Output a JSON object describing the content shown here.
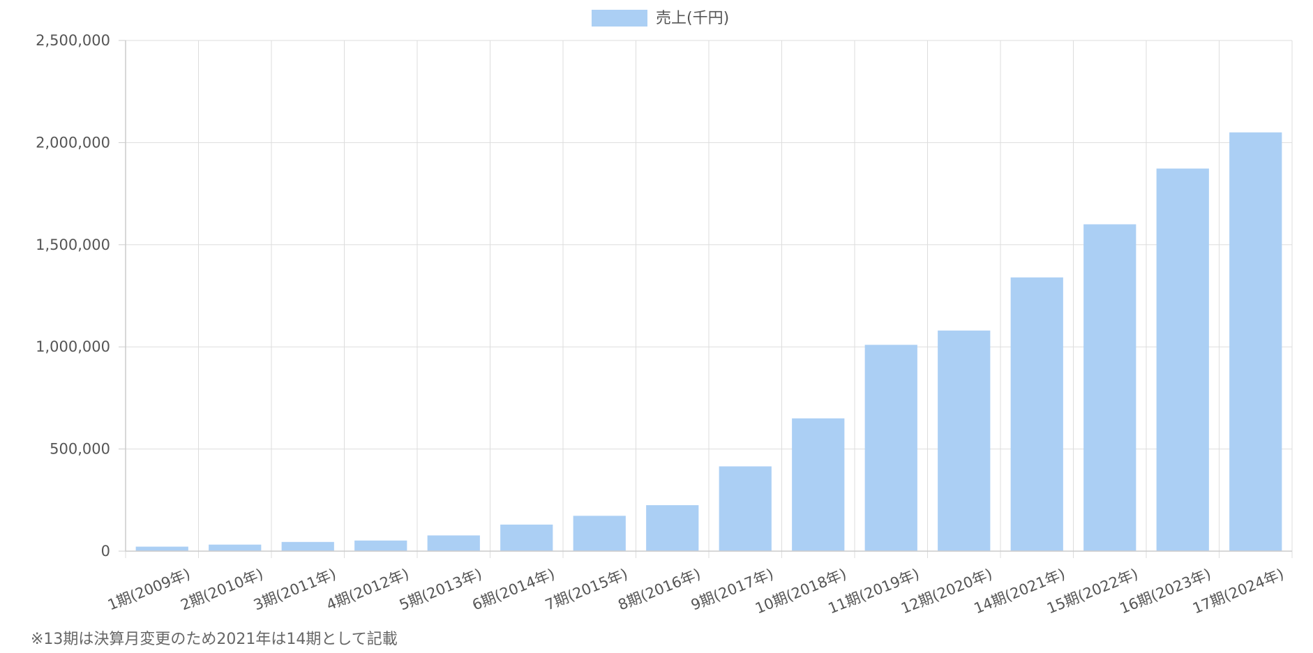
{
  "chart_data": {
    "type": "bar",
    "title": "",
    "xlabel": "",
    "ylabel": "",
    "categories": [
      "1期(2009年)",
      "2期(2010年)",
      "3期(2011年)",
      "4期(2012年)",
      "5期(2013年)",
      "6期(2014年)",
      "7期(2015年)",
      "8期(2016年)",
      "9期(2017年)",
      "10期(2018年)",
      "11期(2019年)",
      "12期(2020年)",
      "14期(2021年)",
      "15期(2022年)",
      "16期(2023年)",
      "17期(2024年)"
    ],
    "series": [
      {
        "name": "売上(千円)",
        "color": "#abcff4",
        "values": [
          22000,
          32000,
          45000,
          52000,
          77000,
          130000,
          173000,
          225000,
          415000,
          650000,
          1010000,
          1080000,
          1340000,
          1600000,
          1873000,
          2050000
        ]
      }
    ],
    "ylim": [
      0,
      2500000
    ],
    "yticks": [
      0,
      500000,
      1000000,
      1500000,
      2000000,
      2500000
    ],
    "ytick_labels": [
      "0",
      "500,000",
      "1,000,000",
      "1,500,000",
      "2,000,000",
      "2,500,000"
    ],
    "grid": true,
    "legend_position": "top-center"
  },
  "footnote": "※13期は決算月変更のため2021年は14期として記載"
}
